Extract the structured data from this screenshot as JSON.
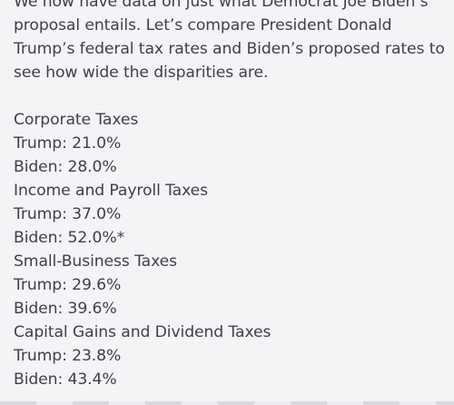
{
  "post": {
    "intro": [
      "We now have data on just what Democrat Joe Biden’s",
      "proposal entails. Let’s compare President Donald",
      "Trump’s federal tax rates and Biden’s proposed rates to",
      "see how wide the disparities are."
    ],
    "sections": [
      {
        "heading": "Corporate Taxes",
        "trump": "Trump: 21.0%",
        "biden": "Biden: 28.0%"
      },
      {
        "heading": "Income and Payroll Taxes",
        "trump": "Trump: 37.0%",
        "biden": "Biden: 52.0%*"
      },
      {
        "heading": "Small-Business Taxes",
        "trump": "Trump: 29.6%",
        "biden": "Biden: 39.6%"
      },
      {
        "heading": "Capital Gains and Dividend Taxes",
        "trump": "Trump: 23.8%",
        "biden": "Biden: 43.4%"
      }
    ]
  }
}
